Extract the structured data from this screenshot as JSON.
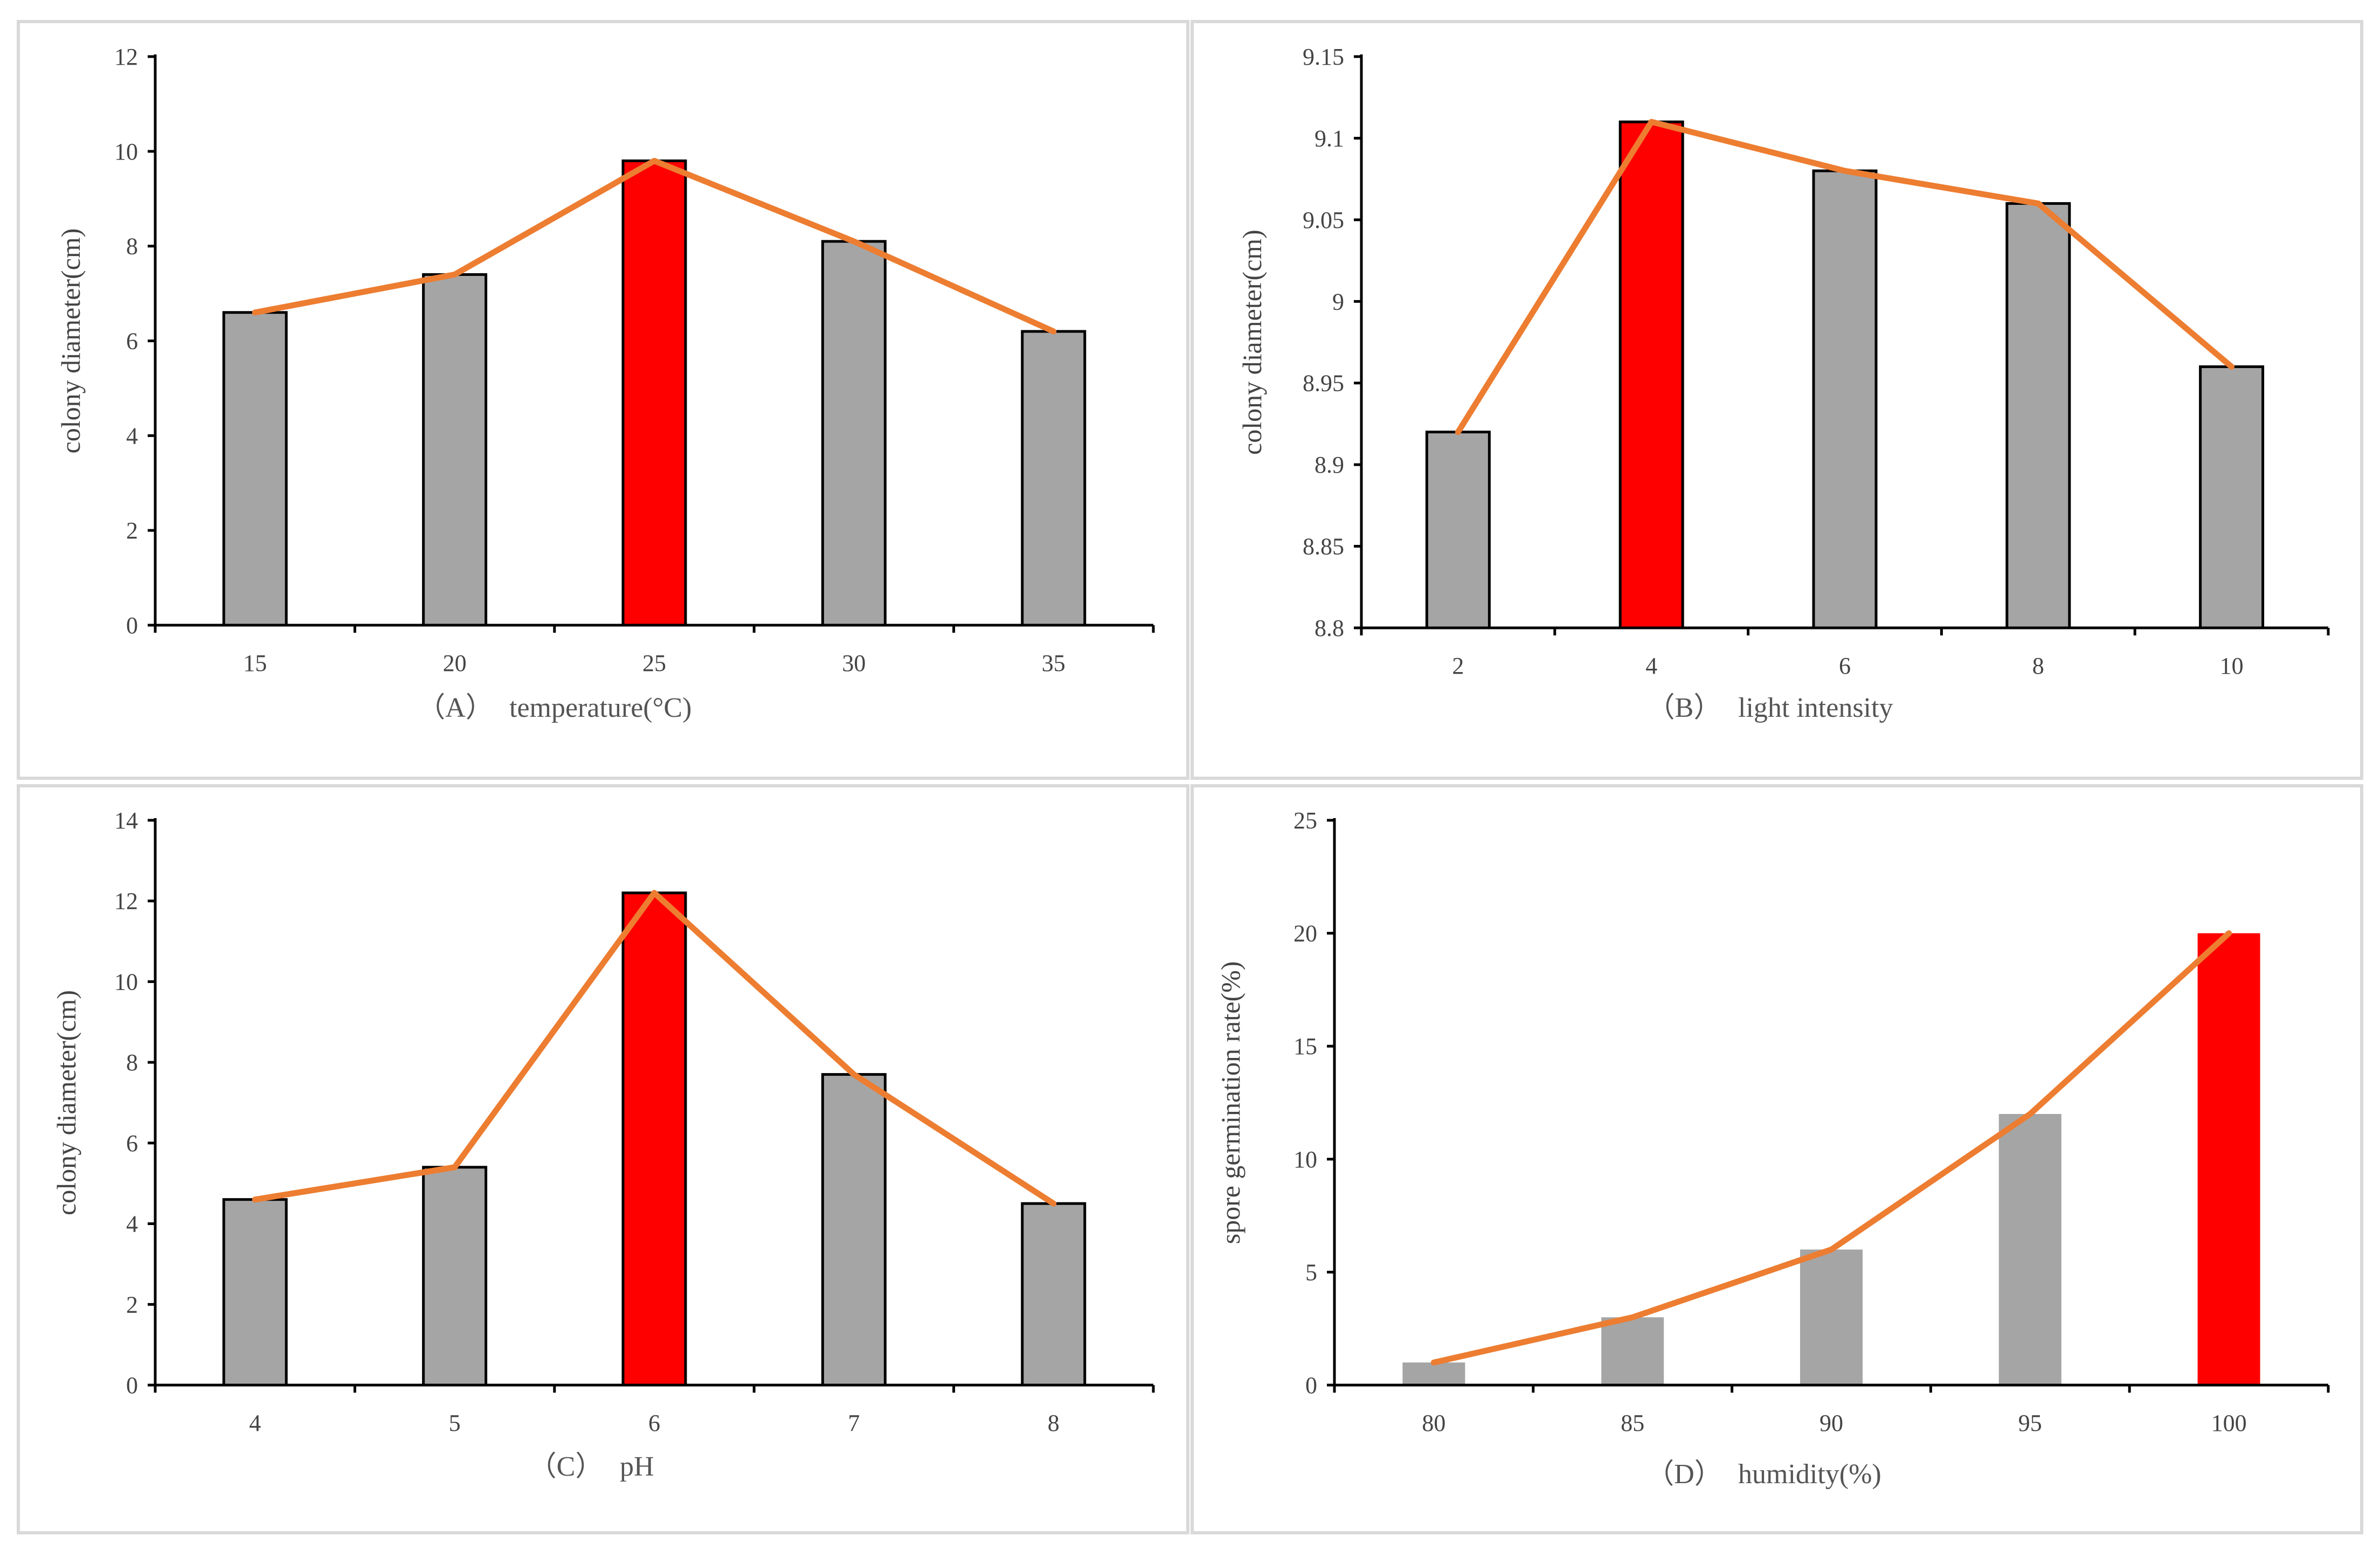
{
  "colors": {
    "bar_default": "#a5a5a5",
    "bar_highlight": "#ff0000",
    "trend_line": "#ed7d31",
    "bar_outline": "#000000"
  },
  "chart_data": [
    {
      "type": "bar",
      "panel": "A",
      "caption_label": "（A）",
      "xlabel": "temperature(°C)",
      "ylabel": "colony diameter(cm)",
      "categories": [
        "15",
        "20",
        "25",
        "30",
        "35"
      ],
      "values": [
        6.6,
        7.4,
        9.8,
        8.1,
        6.2
      ],
      "highlight_index": 2,
      "ylim": [
        0,
        12
      ],
      "yticks": [
        0,
        2,
        4,
        6,
        8,
        10,
        12
      ],
      "ytick_labels": [
        "0",
        "2",
        "4",
        "6",
        "8",
        "10",
        "12"
      ],
      "bar_outline": true,
      "trend_line": true
    },
    {
      "type": "bar",
      "panel": "B",
      "caption_label": "（B）",
      "xlabel": "light intensity",
      "ylabel": "colony diameter(cm)",
      "categories": [
        "2",
        "4",
        "6",
        "8",
        "10"
      ],
      "values": [
        8.92,
        9.11,
        9.08,
        9.06,
        8.96
      ],
      "highlight_index": 1,
      "ylim": [
        8.8,
        9.15
      ],
      "yticks": [
        8.8,
        8.85,
        8.9,
        8.95,
        9.0,
        9.05,
        9.1,
        9.15
      ],
      "ytick_labels": [
        "8.8",
        "8.85",
        "8.9",
        "8.95",
        "9",
        "9.05",
        "9.1",
        "9.15"
      ],
      "bar_outline": true,
      "trend_line": true
    },
    {
      "type": "bar",
      "panel": "C",
      "caption_label": "（C）",
      "xlabel": "pH",
      "ylabel": "colony diameter(cm)",
      "categories": [
        "4",
        "5",
        "6",
        "7",
        "8"
      ],
      "values": [
        4.6,
        5.4,
        12.2,
        7.7,
        4.5
      ],
      "highlight_index": 2,
      "ylim": [
        0,
        14
      ],
      "yticks": [
        0,
        2,
        4,
        6,
        8,
        10,
        12,
        14
      ],
      "ytick_labels": [
        "0",
        "2",
        "4",
        "6",
        "8",
        "10",
        "12",
        "14"
      ],
      "bar_outline": true,
      "trend_line": true
    },
    {
      "type": "bar",
      "panel": "D",
      "caption_label": "（D）",
      "xlabel": "humidity(%)",
      "ylabel": "spore germination rate(%)",
      "categories": [
        "80",
        "85",
        "90",
        "95",
        "100"
      ],
      "values": [
        1,
        3,
        6,
        12,
        20
      ],
      "highlight_index": 4,
      "ylim": [
        0,
        25
      ],
      "yticks": [
        0,
        5,
        10,
        15,
        20,
        25
      ],
      "ytick_labels": [
        "0",
        "5",
        "10",
        "15",
        "20",
        "25"
      ],
      "bar_outline": false,
      "trend_line": true
    }
  ]
}
